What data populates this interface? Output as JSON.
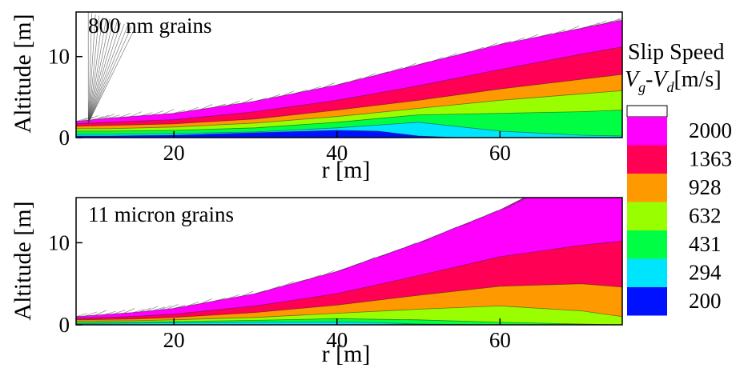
{
  "chart_data": [
    {
      "type": "heatmap",
      "panel_label": "800 nm grains",
      "xlabel": "r [m]",
      "ylabel": "Altitude [m]",
      "xlim": [
        8,
        75
      ],
      "ylim": [
        0,
        15.5
      ],
      "x_ticks": [
        20,
        40,
        60
      ],
      "y_ticks": [
        0,
        10
      ],
      "bands": [
        {
          "level": "2000",
          "color": "#ff00ff",
          "boundary_r": [
            8,
            12,
            20,
            30,
            40,
            50,
            60,
            70,
            75
          ],
          "boundary_alt": [
            2.0,
            2.4,
            3.0,
            4.5,
            6.5,
            9.0,
            11.5,
            13.5,
            14.5
          ]
        },
        {
          "level": "1363",
          "color": "#ff0055",
          "boundary_r": [
            8,
            12,
            20,
            30,
            40,
            50,
            60,
            70,
            75
          ],
          "boundary_alt": [
            1.7,
            1.9,
            2.2,
            3.2,
            4.6,
            6.4,
            8.4,
            10.3,
            11.2
          ]
        },
        {
          "level": "928",
          "color": "#ff9900",
          "boundary_r": [
            8,
            12,
            20,
            30,
            40,
            50,
            60,
            70,
            75
          ],
          "boundary_alt": [
            1.4,
            1.5,
            1.7,
            2.3,
            3.4,
            4.6,
            6.0,
            7.2,
            7.8
          ]
        },
        {
          "level": "632",
          "color": "#99ff00",
          "boundary_r": [
            8,
            12,
            20,
            30,
            40,
            50,
            60,
            70,
            75
          ],
          "boundary_alt": [
            1.1,
            1.1,
            1.3,
            1.8,
            2.6,
            3.6,
            4.6,
            5.4,
            5.8
          ]
        },
        {
          "level": "431",
          "color": "#00ff44",
          "boundary_r": [
            8,
            12,
            20,
            30,
            40,
            50,
            60,
            70,
            75
          ],
          "boundary_alt": [
            0.8,
            0.8,
            0.9,
            1.2,
            1.9,
            2.8,
            3.0,
            3.2,
            3.4
          ]
        },
        {
          "level": "294",
          "color": "#00e5ff",
          "boundary_r": [
            8,
            12,
            20,
            30,
            40,
            50,
            60,
            70,
            75
          ],
          "boundary_alt": [
            0.4,
            0.4,
            0.5,
            0.7,
            1.2,
            1.9,
            0.8,
            0.3,
            0.2
          ]
        },
        {
          "level": "200",
          "color": "#0011ff",
          "boundary_r": [
            8,
            12,
            20,
            30,
            40,
            45,
            50,
            55,
            75
          ],
          "boundary_alt": [
            0.2,
            0.2,
            0.3,
            0.6,
            0.9,
            0.8,
            0.2,
            0.0,
            0.0
          ]
        }
      ]
    },
    {
      "type": "heatmap",
      "panel_label": "11 micron grains",
      "xlabel": "r [m]",
      "ylabel": "Altitude [m]",
      "xlim": [
        8,
        75
      ],
      "ylim": [
        0,
        15.5
      ],
      "x_ticks": [
        20,
        40,
        60
      ],
      "y_ticks": [
        0,
        10
      ],
      "bands": [
        {
          "level": "2000",
          "color": "#ff00ff",
          "boundary_r": [
            8,
            15,
            20,
            30,
            40,
            50,
            60,
            63,
            75
          ],
          "boundary_alt": [
            1.0,
            1.5,
            2.0,
            3.8,
            6.5,
            10.0,
            14.0,
            15.5,
            15.5
          ]
        },
        {
          "level": "1363",
          "color": "#ff0055",
          "boundary_r": [
            8,
            15,
            20,
            30,
            40,
            50,
            60,
            70,
            75
          ],
          "boundary_alt": [
            0.8,
            1.0,
            1.3,
            2.3,
            3.8,
            6.0,
            8.3,
            9.7,
            10.2
          ]
        },
        {
          "level": "928",
          "color": "#ff9900",
          "boundary_r": [
            8,
            15,
            20,
            30,
            40,
            50,
            60,
            70,
            75
          ],
          "boundary_alt": [
            0.6,
            0.7,
            0.9,
            1.5,
            2.4,
            3.6,
            4.7,
            5.0,
            4.6
          ]
        },
        {
          "level": "632",
          "color": "#99ff00",
          "boundary_r": [
            8,
            15,
            20,
            30,
            40,
            50,
            60,
            70,
            75
          ],
          "boundary_alt": [
            0.45,
            0.5,
            0.6,
            0.9,
            1.4,
            1.9,
            2.3,
            1.7,
            1.0
          ]
        },
        {
          "level": "431",
          "color": "#00ff44",
          "boundary_r": [
            8,
            15,
            20,
            30,
            40,
            50,
            60,
            70,
            75
          ],
          "boundary_alt": [
            0.3,
            0.35,
            0.4,
            0.55,
            0.75,
            0.6,
            0.3,
            0.1,
            0.0
          ]
        },
        {
          "level": "294",
          "color": "#00e5ff",
          "boundary_r": [
            8,
            15,
            20,
            30,
            40,
            45,
            50,
            60,
            75
          ],
          "boundary_alt": [
            0.15,
            0.2,
            0.25,
            0.3,
            0.35,
            0.25,
            0.1,
            0.0,
            0.0
          ]
        }
      ]
    }
  ],
  "legend": {
    "title_line1": "Slip Speed",
    "title_v": "V",
    "title_sub_g": "g",
    "title_dash": "-",
    "title_sub_d": "d",
    "title_unit": "[m/s]",
    "levels": [
      {
        "label": "2000",
        "color": "#ff00ff"
      },
      {
        "label": "1363",
        "color": "#ff0055"
      },
      {
        "label": "928",
        "color": "#ff9900"
      },
      {
        "label": "632",
        "color": "#99ff00"
      },
      {
        "label": "431",
        "color": "#00ff44"
      },
      {
        "label": "294",
        "color": "#00e5ff"
      },
      {
        "label": "200",
        "color": "#0011ff"
      }
    ]
  }
}
